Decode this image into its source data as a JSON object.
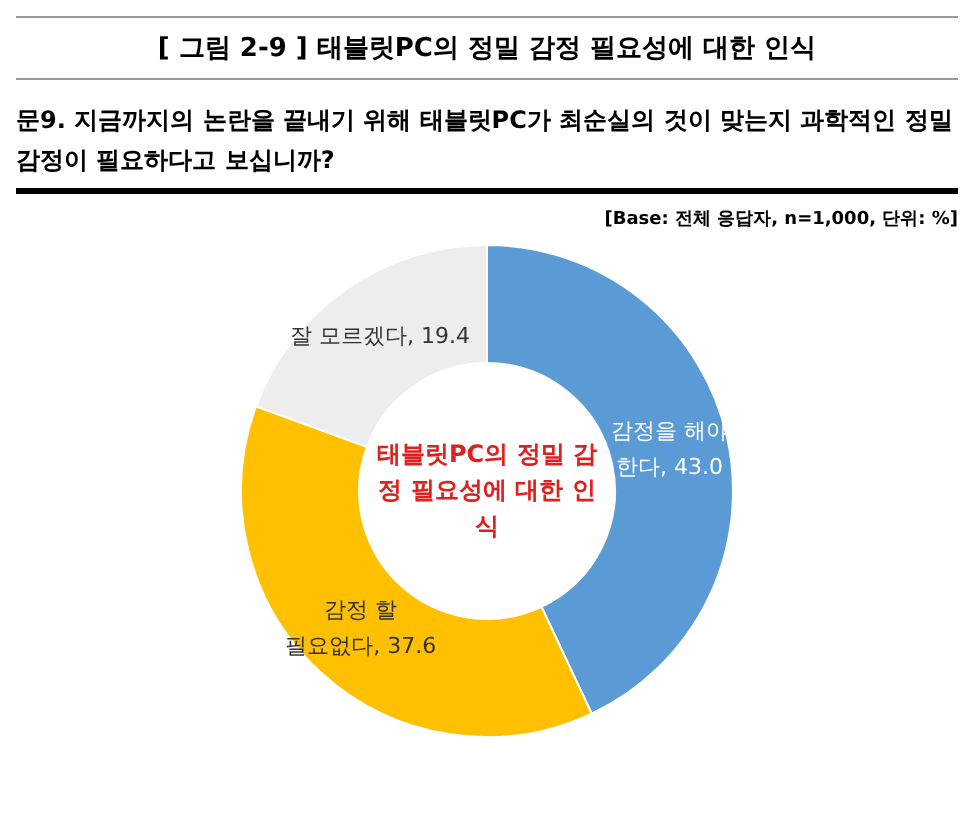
{
  "chart_data": {
    "type": "donut",
    "title": "[ 그림 2-9 ] 태블릿PC의 정밀 감정 필요성에 대한 인식",
    "subtitle": "문9. 지금까지의 논란을 끝내기 위해 태블릿PC가 최순실의 것이 맞는지 과학적인 정밀 감정이 필요하다고 보십니까?",
    "annotations": [
      "[Base: 전체 응답자, n=1,000, 단위: %]",
      "태블릿PC의 정밀 감정 필요성에 대한 인식"
    ],
    "categories": [
      "감정을 해야 한다",
      "감정 할 필요없다",
      "잘 모르겠다"
    ],
    "values": [
      43.0,
      37.6,
      19.4
    ],
    "value_labels": [
      "43.0",
      "37.6",
      "19.4"
    ],
    "colors": [
      "#5b9bd5",
      "#ffc000",
      "#ededed"
    ],
    "legend": false
  }
}
